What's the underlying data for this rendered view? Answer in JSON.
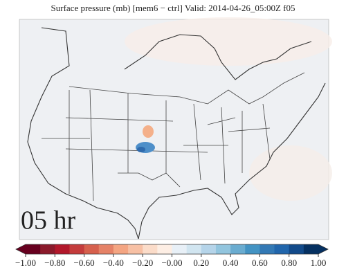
{
  "title": "Surface pressure (mb) [mem6 − ctrl] Valid: 2014-04-26_05:00Z f05",
  "panel_label": "05 hr",
  "colorbar": {
    "vlim": [
      -1,
      1
    ],
    "colors": [
      "#67001f",
      "#8b1a2b",
      "#b2182b",
      "#c43c3c",
      "#d6604d",
      "#e58267",
      "#f4a582",
      "#f7c0a4",
      "#fbdcc9",
      "#fdeee4",
      "#e8f0f7",
      "#d1e5f0",
      "#b5d4e9",
      "#92c5de",
      "#6aacd0",
      "#4393c3",
      "#3379b5",
      "#2166ac",
      "#124a8a",
      "#053061"
    ],
    "ticks": [
      {
        "value": -1,
        "label": "−1.00"
      },
      {
        "value": -0.8,
        "label": "−0.80"
      },
      {
        "value": -0.6,
        "label": "−0.60"
      },
      {
        "value": -0.4,
        "label": "−0.40"
      },
      {
        "value": -0.2,
        "label": "−0.20"
      },
      {
        "value": 0,
        "label": "−0.00"
      },
      {
        "value": 0.2,
        "label": "0.20"
      },
      {
        "value": 0.4,
        "label": "0.40"
      },
      {
        "value": 0.6,
        "label": "0.60"
      },
      {
        "value": 0.8,
        "label": "0.80"
      },
      {
        "value": 1,
        "label": "1.00"
      }
    ]
  }
}
